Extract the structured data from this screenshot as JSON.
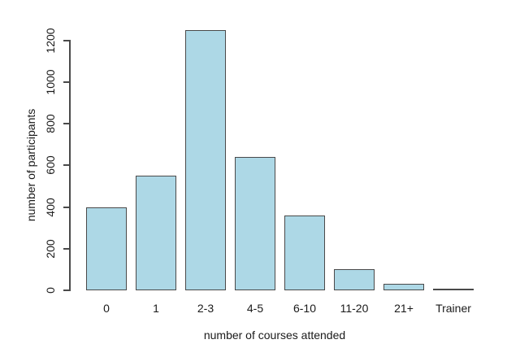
{
  "figure": {
    "background": "#ffffff"
  },
  "chart_data": {
    "type": "bar",
    "title": "",
    "xlabel": "number of courses attended",
    "ylabel": "number of participants",
    "categories": [
      "0",
      "1",
      "2-3",
      "4-5",
      "6-10",
      "11-20",
      "21+",
      "Trainer"
    ],
    "values": [
      400,
      550,
      1250,
      640,
      360,
      100,
      30,
      5
    ],
    "ylim": [
      0,
      1250
    ],
    "yticks": [
      0,
      200,
      400,
      600,
      800,
      1000,
      1200
    ],
    "grid": false,
    "legend": null,
    "bar_fill": "#ADD8E6",
    "bar_border": "#4a4a4a",
    "axis_color": "#4a4a4a",
    "text_color": "#1a1a1a"
  }
}
